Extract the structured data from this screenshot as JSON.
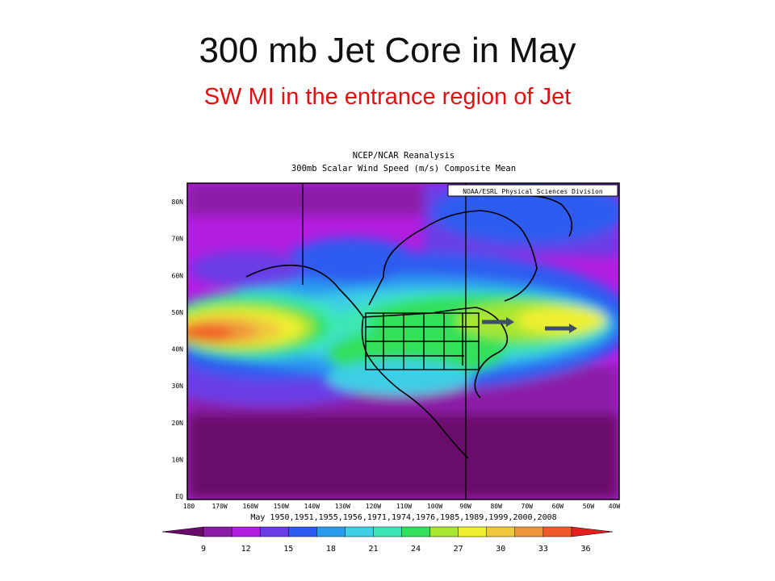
{
  "slide": {
    "title": "300 mb Jet Core in May",
    "subtitle": "SW MI in the entrance region of Jet",
    "subtitle_color": "#e01010"
  },
  "figure": {
    "header_line1": "NCEP/NCAR Reanalysis",
    "header_line2": "300mb Scalar Wind Speed (m/s) Composite Mean",
    "credit": "NOAA/ESRL Physical Sciences Division",
    "caption": "May 1950,1951,1955,1956,1971,1974,1976,1985,1989,1999,2000,2008",
    "lat_labels": [
      "80N",
      "70N",
      "60N",
      "50N",
      "40N",
      "30N",
      "20N",
      "10N",
      "EQ"
    ],
    "lon_labels": [
      "180",
      "170W",
      "160W",
      "150W",
      "140W",
      "130W",
      "120W",
      "110W",
      "100W",
      "90W",
      "80W",
      "70W",
      "60W",
      "50W",
      "40W"
    ],
    "colorbar": {
      "ticks": [
        "9",
        "12",
        "15",
        "18",
        "21",
        "24",
        "27",
        "30",
        "33",
        "36"
      ],
      "colors": [
        "#6a0a6a",
        "#8c1aa8",
        "#b21ee0",
        "#6a3ce6",
        "#2f5cf0",
        "#2a9cf0",
        "#3ccfe6",
        "#3ce6b4",
        "#32e05a",
        "#a8e632",
        "#f0f032",
        "#f0c83c",
        "#f0963c",
        "#f05a28",
        "#e61e1e"
      ],
      "units": "m/s"
    },
    "arrows_description_note": ""
  }
}
